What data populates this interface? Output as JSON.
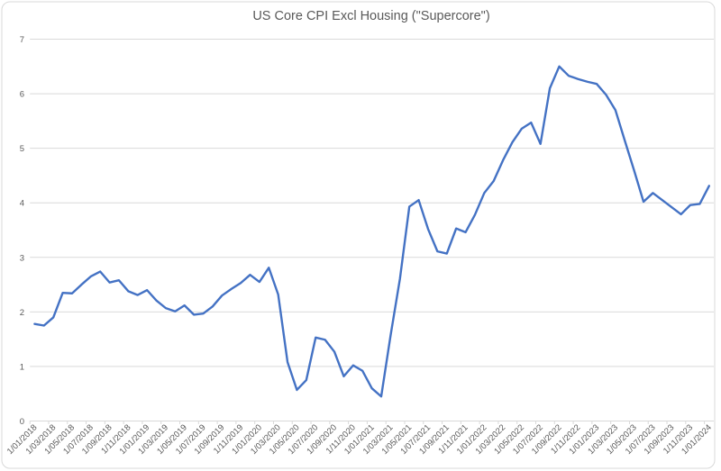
{
  "chart_data": {
    "type": "line",
    "title": "US Core CPI Excl Housing (\"Supercore\")",
    "xlabel": "",
    "ylabel": "",
    "ylim": [
      0,
      7
    ],
    "y_ticks": [
      0,
      1,
      2,
      3,
      4,
      5,
      6,
      7
    ],
    "grid": "horizontal",
    "legend": "none",
    "x_interval": "monthly, labeled every 2 months",
    "x_tick_labels": [
      "1/01/2018",
      "1/03/2018",
      "1/05/2018",
      "1/07/2018",
      "1/09/2018",
      "1/11/2018",
      "1/01/2019",
      "1/03/2019",
      "1/05/2019",
      "1/07/2019",
      "1/09/2019",
      "1/11/2019",
      "1/01/2020",
      "1/03/2020",
      "1/05/2020",
      "1/07/2020",
      "1/09/2020",
      "1/11/2020",
      "1/01/2021",
      "1/03/2021",
      "1/05/2021",
      "1/07/2021",
      "1/09/2021",
      "1/11/2021",
      "1/01/2022",
      "1/03/2022",
      "1/05/2022",
      "1/07/2022",
      "1/09/2022",
      "1/11/2022",
      "1/01/2023",
      "1/03/2023",
      "1/05/2023",
      "1/07/2023",
      "1/09/2023",
      "1/11/2023",
      "1/01/2024"
    ],
    "values": [
      1.78,
      1.75,
      1.9,
      2.35,
      2.34,
      2.5,
      2.65,
      2.74,
      2.54,
      2.58,
      2.38,
      2.31,
      2.4,
      2.21,
      2.07,
      2.01,
      2.12,
      1.95,
      1.97,
      2.1,
      2.3,
      2.42,
      2.53,
      2.68,
      2.55,
      2.81,
      2.32,
      1.08,
      0.57,
      0.75,
      1.53,
      1.49,
      1.27,
      0.82,
      1.02,
      0.92,
      0.6,
      0.45,
      1.57,
      2.61,
      3.93,
      4.05,
      3.52,
      3.11,
      3.07,
      3.53,
      3.46,
      3.78,
      4.18,
      4.4,
      4.78,
      5.11,
      5.36,
      5.47,
      5.08,
      6.1,
      6.5,
      6.33,
      6.27,
      6.22,
      6.18,
      5.98,
      5.7,
      5.14,
      4.59,
      4.02,
      4.18,
      4.05,
      3.92,
      3.79,
      3.96,
      3.98,
      4.31
    ],
    "colors": {
      "line": "#4472C4",
      "grid": "#D9D9D9",
      "axis": "#D9D9D9",
      "text": "#595959",
      "border": "#D9D9D9",
      "background": "#FFFFFF"
    }
  }
}
